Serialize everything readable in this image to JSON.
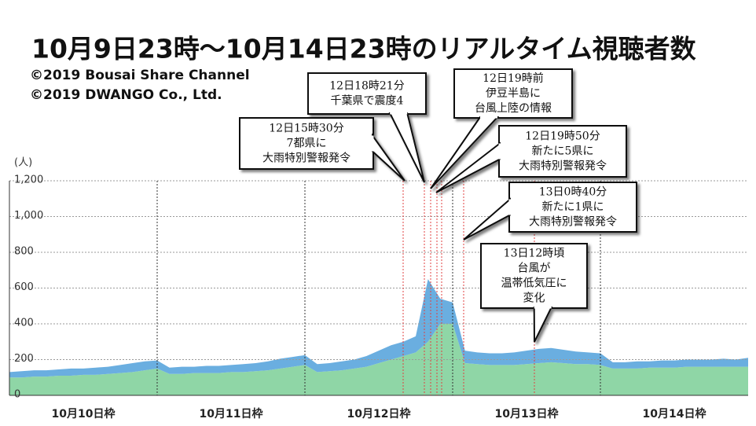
{
  "chart_data": {
    "type": "stacked_area",
    "title": "10月9日23時〜10月14日23時のリアルタイム視聴者数",
    "credits": [
      "©2019 Bousai Share Channel",
      "©2019 DWANGO Co., Ltd."
    ],
    "y_label": "(人)",
    "categories": [
      null,
      null,
      null,
      null,
      null,
      null,
      "10月10日枠",
      null,
      null,
      null,
      null,
      null,
      null,
      null,
      null,
      null,
      null,
      null,
      "10月11日枠",
      null,
      null,
      null,
      null,
      null,
      null,
      null,
      null,
      null,
      null,
      null,
      "10月12日枠",
      null,
      null,
      null,
      null,
      null,
      null,
      null,
      null,
      null,
      null,
      null,
      "10月13日枠",
      null,
      null,
      null,
      null,
      null,
      null,
      null,
      null,
      null,
      null,
      null,
      "10月14日枠",
      null,
      null,
      null,
      null,
      null,
      null
    ],
    "series": [
      {
        "color": "#8fd6a6",
        "values": [
          100,
          100,
          105,
          105,
          110,
          110,
          115,
          115,
          120,
          125,
          130,
          140,
          150,
          120,
          120,
          125,
          125,
          125,
          130,
          130,
          135,
          140,
          150,
          160,
          170,
          130,
          135,
          140,
          150,
          160,
          180,
          200,
          220,
          240,
          300,
          400,
          400,
          180,
          175,
          170,
          170,
          170,
          175,
          180,
          185,
          180,
          175,
          175,
          170,
          150,
          150,
          150,
          155,
          155,
          155,
          160,
          160,
          160,
          160,
          160,
          160
        ]
      },
      {
        "color": "#6aaee0",
        "values": [
          30,
          35,
          35,
          35,
          35,
          40,
          35,
          40,
          40,
          45,
          50,
          50,
          45,
          35,
          40,
          35,
          40,
          40,
          40,
          45,
          45,
          50,
          55,
          55,
          55,
          45,
          45,
          50,
          50,
          60,
          70,
          80,
          80,
          90,
          350,
          140,
          120,
          70,
          65,
          65,
          65,
          70,
          75,
          80,
          80,
          75,
          70,
          65,
          65,
          35,
          35,
          40,
          35,
          40,
          40,
          40,
          40,
          40,
          45,
          40,
          50
        ]
      }
    ],
    "ylim": [
      0,
      1200
    ],
    "yticks": [
      0,
      200,
      400,
      600,
      800,
      {
        "value": 1000,
        "label": "1,000"
      },
      {
        "value": 1200,
        "label": "1,200"
      }
    ],
    "grid": true,
    "annotations": [
      {
        "lines": [
          "12日15時30分",
          "7都県に",
          "大雨特別警報発令"
        ]
      },
      {
        "lines": [
          "12日18時21分",
          "千葉県で震度4"
        ]
      },
      {
        "lines": [
          "12日19時前",
          "伊豆半島に",
          "台風上陸の情報"
        ]
      },
      {
        "lines": [
          "12日19時50分",
          "新たに5県に",
          "大雨特別警報発令"
        ]
      },
      {
        "lines": [
          "13日0時40分",
          "新たに1県に",
          "大雨特別警報発令"
        ]
      },
      {
        "lines": [
          "13日12時頃",
          "台風が",
          "温帯低気圧に",
          "変化"
        ]
      }
    ]
  }
}
